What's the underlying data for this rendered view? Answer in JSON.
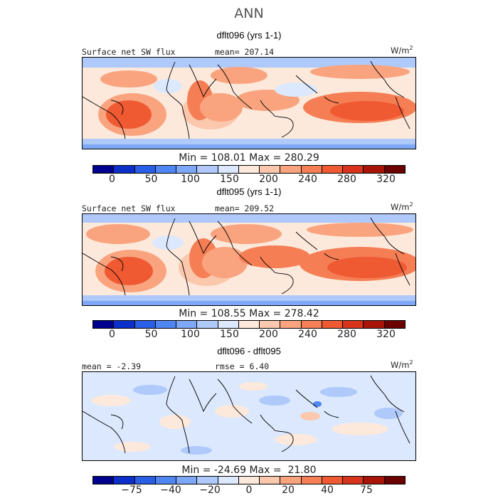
{
  "title": "ANN",
  "colors": {
    "abs_scale": [
      "#00008f",
      "#0b2fc8",
      "#2a5ee6",
      "#4f86f2",
      "#7ea8f7",
      "#aec9fa",
      "#dbe8fd",
      "#fde9dc",
      "#fbc7ad",
      "#f9a47f",
      "#f57e55",
      "#ef5a33",
      "#d8341c",
      "#a81508",
      "#6b0000"
    ],
    "diff_scale": [
      "#00008f",
      "#0b2fc8",
      "#2a5ee6",
      "#4f86f2",
      "#7ea8f7",
      "#aec9fa",
      "#dbe8fd",
      "#fde9dc",
      "#fbc7ad",
      "#f9a47f",
      "#f57e55",
      "#ef5a33",
      "#d8341c",
      "#a81508",
      "#6b0000"
    ]
  },
  "panels": [
    {
      "title": "dflt096 (yrs 1-1)",
      "label_left": "Surface net SW flux",
      "label_mid": "mean= 207.14",
      "unit": "W/m",
      "unit_exp": "2",
      "min_max": "Min = 108.01 Max = 280.29",
      "ticks": [
        "0",
        "50",
        "100",
        "150",
        "200",
        "240",
        "280",
        "320"
      ]
    },
    {
      "title": "dflt095 (yrs 1-1)",
      "label_left": "Surface net SW flux",
      "label_mid": "mean= 209.52",
      "unit": "W/m",
      "unit_exp": "2",
      "min_max": "Min = 108.55 Max = 278.42",
      "ticks": [
        "0",
        "50",
        "100",
        "150",
        "200",
        "240",
        "280",
        "320"
      ]
    },
    {
      "title": "dflt096 - dflt095",
      "label_left": "mean =   -2.39",
      "label_mid": "rmse =    6.40",
      "unit": "W/m",
      "unit_exp": "2",
      "min_max": "Min = -24.69 Max =  21.80",
      "ticks": [
        "-75",
        "-40",
        "-20",
        "0",
        "20",
        "40",
        "75"
      ]
    }
  ]
}
